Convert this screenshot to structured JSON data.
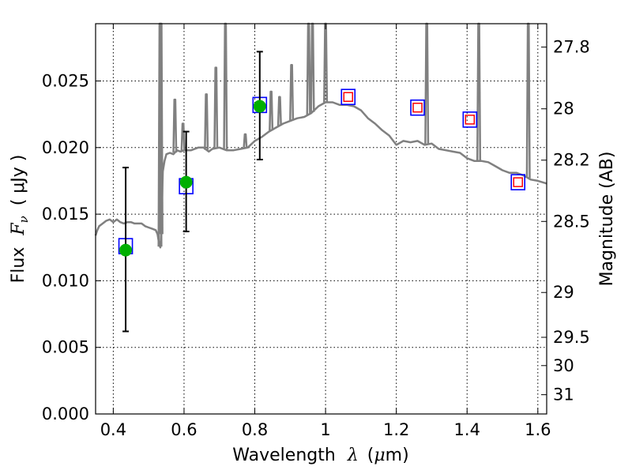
{
  "chart_data": {
    "type": "line",
    "title": "",
    "xlabel_parts": {
      "text": "Wavelength",
      "symbol": "λ",
      "unit_open": "(",
      "unit_mu": "μ",
      "unit_rest": "m)"
    },
    "ylabel_parts": {
      "text": "Flux",
      "symbol": "F",
      "sub": "ν",
      "unit": "(  μJy )"
    },
    "y2label": "Magnitude (AB)",
    "xlim": [
      0.35,
      1.625
    ],
    "ylim": [
      0.0,
      0.0293
    ],
    "grid": true,
    "x_ticks": [
      0.4,
      0.6,
      0.8,
      1.0,
      1.2,
      1.4,
      1.6
    ],
    "x_tick_labels": [
      "0.4",
      "0.6",
      "0.8",
      "1",
      "1.2",
      "1.4",
      "1.6"
    ],
    "y_ticks": [
      0.0,
      0.005,
      0.01,
      0.015,
      0.02,
      0.025
    ],
    "y_tick_labels": [
      "0.000",
      "0.005",
      "0.010",
      "0.015",
      "0.020",
      "0.025"
    ],
    "mag_ticks": [
      27.8,
      28.0,
      28.2,
      28.5,
      29.0,
      29.5,
      30.0,
      31.0
    ],
    "mag_tick_labels": [
      "27.8",
      "28",
      "28.2",
      "28.5",
      "29",
      "29.5",
      "30",
      "31"
    ],
    "colors": {
      "model": "#808080",
      "observed": "#00b000",
      "model_box": "#0000ff",
      "photometry": "#ff0000",
      "errorbar": "#000000",
      "grid": "#000000"
    },
    "series": [
      {
        "name": "model spectrum",
        "x": [
          0.35,
          0.355,
          0.36,
          0.37,
          0.38,
          0.39,
          0.4,
          0.41,
          0.42,
          0.43,
          0.44,
          0.45,
          0.46,
          0.47,
          0.48,
          0.49,
          0.5,
          0.51,
          0.52,
          0.525,
          0.53,
          0.533,
          0.536,
          0.54,
          0.545,
          0.55,
          0.56,
          0.57,
          0.58,
          0.59,
          0.6,
          0.62,
          0.64,
          0.655,
          0.66,
          0.67,
          0.68,
          0.7,
          0.72,
          0.74,
          0.76,
          0.78,
          0.8,
          0.82,
          0.84,
          0.86,
          0.88,
          0.9,
          0.92,
          0.94,
          0.96,
          0.98,
          1.0,
          1.02,
          1.04,
          1.06,
          1.08,
          1.1,
          1.12,
          1.14,
          1.16,
          1.18,
          1.2,
          1.22,
          1.24,
          1.26,
          1.28,
          1.3,
          1.32,
          1.34,
          1.36,
          1.38,
          1.4,
          1.42,
          1.44,
          1.46,
          1.48,
          1.5,
          1.52,
          1.54,
          1.56,
          1.58,
          1.6,
          1.625
        ],
        "values": [
          0.0134,
          0.0138,
          0.0141,
          0.0143,
          0.0145,
          0.0146,
          0.0144,
          0.0146,
          0.0144,
          0.0143,
          0.0144,
          0.0144,
          0.0143,
          0.0143,
          0.0143,
          0.0141,
          0.014,
          0.0139,
          0.0138,
          0.0135,
          0.0127,
          0.0125,
          0.014,
          0.0182,
          0.019,
          0.0195,
          0.0196,
          0.0195,
          0.0198,
          0.0197,
          0.0198,
          0.0198,
          0.02,
          0.02,
          0.0199,
          0.0197,
          0.0199,
          0.02,
          0.0198,
          0.0198,
          0.0199,
          0.02,
          0.0205,
          0.0208,
          0.0212,
          0.0215,
          0.0218,
          0.022,
          0.0222,
          0.0223,
          0.0226,
          0.0231,
          0.0234,
          0.0234,
          0.0232,
          0.0232,
          0.0231,
          0.0228,
          0.0222,
          0.0218,
          0.0213,
          0.0209,
          0.0202,
          0.0205,
          0.0204,
          0.0205,
          0.0202,
          0.0203,
          0.0199,
          0.0198,
          0.0197,
          0.0196,
          0.0192,
          0.019,
          0.019,
          0.0189,
          0.0186,
          0.0183,
          0.0181,
          0.0181,
          0.0179,
          0.0176,
          0.0175,
          0.0173
        ]
      },
      {
        "name": "emission lines",
        "lines": [
          {
            "x": 0.532,
            "peak": 0.0293
          },
          {
            "x": 0.535,
            "peak": 0.0293
          },
          {
            "x": 0.574,
            "peak": 0.0236
          },
          {
            "x": 0.597,
            "peak": 0.0218
          },
          {
            "x": 0.663,
            "peak": 0.024
          },
          {
            "x": 0.69,
            "peak": 0.026
          },
          {
            "x": 0.717,
            "peak": 0.0293
          },
          {
            "x": 0.773,
            "peak": 0.021
          },
          {
            "x": 0.846,
            "peak": 0.0242
          },
          {
            "x": 0.87,
            "peak": 0.0238
          },
          {
            "x": 0.904,
            "peak": 0.0262
          },
          {
            "x": 0.952,
            "peak": 0.0293
          },
          {
            "x": 0.963,
            "peak": 0.0293
          },
          {
            "x": 1.0,
            "peak": 0.0293
          },
          {
            "x": 1.286,
            "peak": 0.0293
          },
          {
            "x": 1.433,
            "peak": 0.0293
          },
          {
            "x": 1.573,
            "peak": 0.0293
          }
        ]
      },
      {
        "name": "observed photometry",
        "x": [
          0.435,
          0.606,
          0.814
        ],
        "values": [
          0.0123,
          0.0174,
          0.0231
        ],
        "yerr_low": [
          0.0062,
          0.0137,
          0.0191
        ],
        "yerr_high": [
          0.0185,
          0.0212,
          0.0272
        ]
      },
      {
        "name": "model photometry",
        "x": [
          0.435,
          0.606,
          0.814,
          1.064,
          1.26,
          1.408,
          1.544
        ],
        "values": [
          0.0126,
          0.0171,
          0.0232,
          0.0238,
          0.023,
          0.0221,
          0.0174
        ]
      },
      {
        "name": "upper limits",
        "x": [
          1.064,
          1.26,
          1.408,
          1.544
        ],
        "values": [
          0.0238,
          0.023,
          0.0221,
          0.0174
        ]
      }
    ]
  }
}
